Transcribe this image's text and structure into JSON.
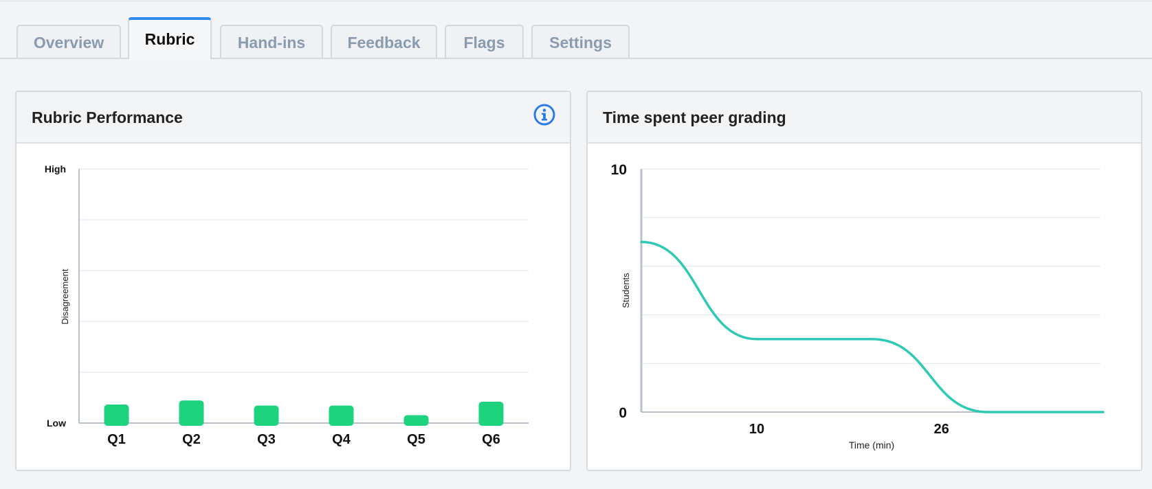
{
  "tabs": [
    {
      "label": "Overview",
      "active": false
    },
    {
      "label": "Rubric",
      "active": true
    },
    {
      "label": "Hand-ins",
      "active": false
    },
    {
      "label": "Feedback",
      "active": false
    },
    {
      "label": "Flags",
      "active": false
    },
    {
      "label": "Settings",
      "active": false
    }
  ],
  "rubric_panel": {
    "title": "Rubric Performance",
    "info_icon": "info-circle-icon"
  },
  "time_panel": {
    "title": "Time spent peer grading"
  },
  "colors": {
    "accent": "#2d8cf0",
    "bar": "#1ed37e",
    "line": "#2ec9b4"
  },
  "chart_data": [
    {
      "type": "bar",
      "categories": [
        "Q1",
        "Q2",
        "Q3",
        "Q4",
        "Q5",
        "Q6"
      ],
      "values": [
        0.073,
        0.089,
        0.069,
        0.069,
        0.031,
        0.084
      ],
      "y_tick_labels": [
        "Low",
        "High"
      ],
      "ylim": [
        0,
        1
      ],
      "xlabel": "",
      "ylabel": "Disagreement",
      "grid": true
    },
    {
      "type": "line",
      "x": [
        0,
        10,
        20,
        30,
        40
      ],
      "y": [
        7,
        3,
        3,
        0,
        0
      ],
      "x_tick_labels": [
        10,
        26
      ],
      "y_tick_labels": [
        0,
        10
      ],
      "ylim": [
        0,
        10
      ],
      "xlabel": "Time (min)",
      "ylabel": "Students",
      "grid": true
    }
  ]
}
